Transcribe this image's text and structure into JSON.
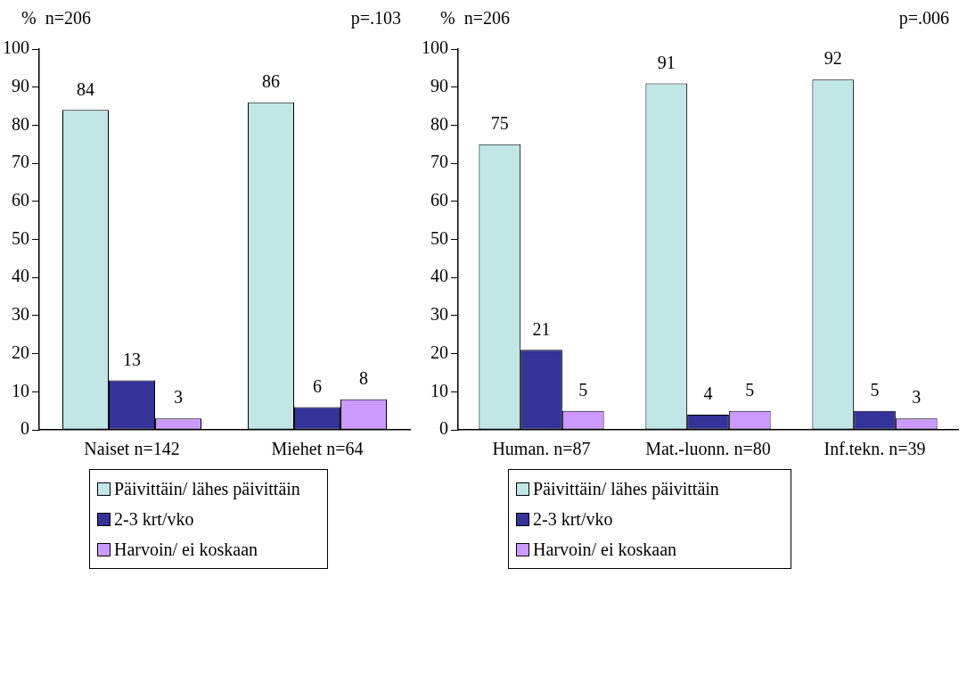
{
  "chart_data": [
    {
      "type": "bar",
      "ylabel": "%",
      "annotations": [
        "n=206",
        "p=.103"
      ],
      "categories": [
        "Naiset n=142",
        "Miehet n=64"
      ],
      "series": [
        {
          "name": "Päivittäin/ lähes päivittäin",
          "color": "#c0e6e6",
          "values": [
            84,
            86
          ]
        },
        {
          "name": "2-3 krt/vko",
          "color": "#333399",
          "values": [
            13,
            6
          ]
        },
        {
          "name": "Harvoin/ ei koskaan",
          "color": "#cc99ff",
          "values": [
            3,
            8
          ]
        }
      ],
      "ylim": [
        0,
        100
      ],
      "yticks": [
        0,
        10,
        20,
        30,
        40,
        50,
        60,
        70,
        80,
        90,
        100
      ],
      "grid": false,
      "legend": "bottom",
      "data_labels": true
    },
    {
      "type": "bar",
      "ylabel": "%",
      "annotations": [
        "n=206",
        "p=.006"
      ],
      "categories": [
        "Human. n=87",
        "Mat.-luonn. n=80",
        "Inf.tekn. n=39"
      ],
      "series": [
        {
          "name": "Päivittäin/ lähes päivittäin",
          "color": "#c0e6e6",
          "values": [
            75,
            91,
            92
          ]
        },
        {
          "name": "2-3 krt/vko",
          "color": "#333399",
          "values": [
            21,
            4,
            5
          ]
        },
        {
          "name": "Harvoin/ ei koskaan",
          "color": "#cc99ff",
          "values": [
            5,
            5,
            3
          ]
        }
      ],
      "ylim": [
        0,
        100
      ],
      "yticks": [
        0,
        10,
        20,
        30,
        40,
        50,
        60,
        70,
        80,
        90,
        100
      ],
      "grid": false,
      "legend": "bottom",
      "data_labels": true
    }
  ]
}
